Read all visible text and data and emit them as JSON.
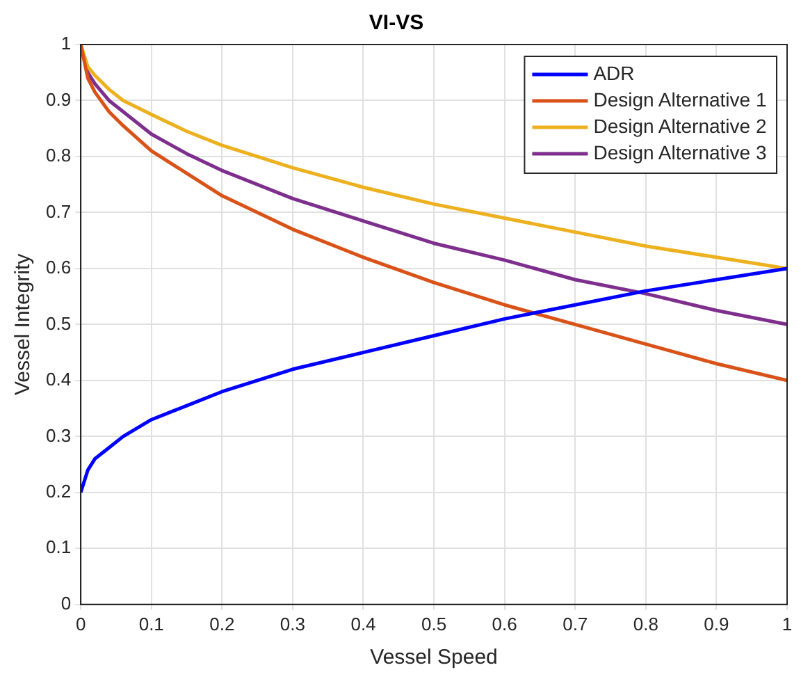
{
  "chart_data": {
    "type": "line",
    "title": "VI-VS",
    "xlabel": "Vessel Speed",
    "ylabel": "Vessel Integrity",
    "x": [
      0,
      0.01,
      0.02,
      0.04,
      0.06,
      0.1,
      0.15,
      0.2,
      0.3,
      0.4,
      0.5,
      0.6,
      0.7,
      0.8,
      0.9,
      1
    ],
    "series": [
      {
        "name": "ADR",
        "color": "#0000ff",
        "values": [
          0.2,
          0.24,
          0.26,
          0.28,
          0.3,
          0.33,
          0.355,
          0.38,
          0.42,
          0.45,
          0.48,
          0.51,
          0.535,
          0.56,
          0.58,
          0.6
        ]
      },
      {
        "name": "Design Alternative 1",
        "color": "#d95319",
        "values": [
          1,
          0.94,
          0.915,
          0.88,
          0.855,
          0.81,
          0.77,
          0.73,
          0.67,
          0.62,
          0.575,
          0.535,
          0.5,
          0.465,
          0.43,
          0.4
        ]
      },
      {
        "name": "Design Alternative 2",
        "color": "#edb120",
        "values": [
          1,
          0.96,
          0.945,
          0.92,
          0.9,
          0.875,
          0.845,
          0.82,
          0.78,
          0.745,
          0.715,
          0.69,
          0.665,
          0.64,
          0.62,
          0.6
        ]
      },
      {
        "name": "Design Alternative 3",
        "color": "#7e2f8e",
        "values": [
          1,
          0.95,
          0.93,
          0.9,
          0.88,
          0.84,
          0.805,
          0.775,
          0.725,
          0.685,
          0.645,
          0.615,
          0.58,
          0.555,
          0.525,
          0.5
        ]
      }
    ],
    "xlim": [
      0,
      1
    ],
    "xticks": [
      0,
      0.1,
      0.2,
      0.3,
      0.4,
      0.5,
      0.6,
      0.7,
      0.8,
      0.9,
      1
    ],
    "ylim": [
      0,
      1
    ],
    "yticks": [
      0,
      0.1,
      0.2,
      0.3,
      0.4,
      0.5,
      0.6,
      0.7,
      0.8,
      0.9,
      1
    ],
    "grid": true,
    "legend": "top right",
    "marker": "none",
    "line_style": "solid"
  }
}
